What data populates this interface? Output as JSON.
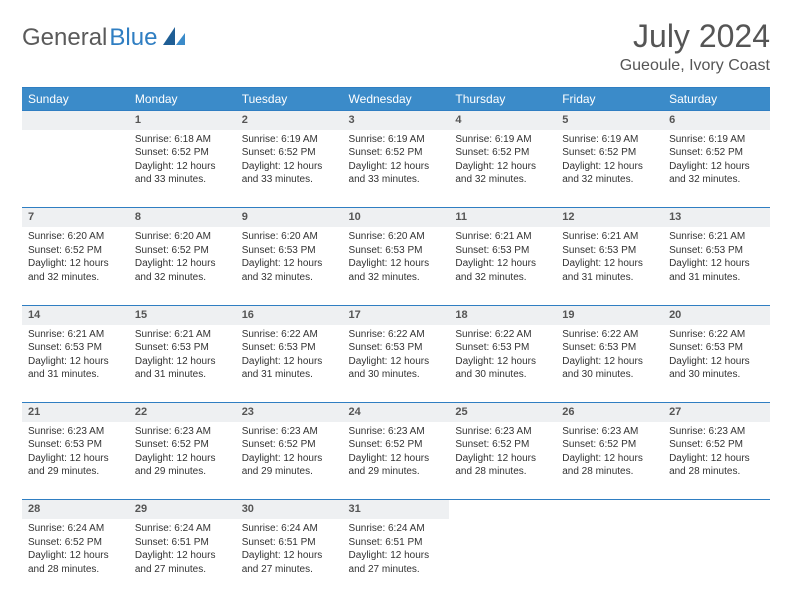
{
  "logo": {
    "part1": "General",
    "part2": "Blue"
  },
  "title": "July 2024",
  "location": "Gueoule, Ivory Coast",
  "weekdays": [
    "Sunday",
    "Monday",
    "Tuesday",
    "Wednesday",
    "Thursday",
    "Friday",
    "Saturday"
  ],
  "colors": {
    "header_bg": "#3b8bc9",
    "header_text": "#ffffff",
    "accent": "#2f7ec2",
    "daynum_bg": "#eef0f2",
    "text": "#333333",
    "title_text": "#555555"
  },
  "weeks": [
    [
      null,
      {
        "n": "1",
        "sr": "Sunrise: 6:18 AM",
        "ss": "Sunset: 6:52 PM",
        "d1": "Daylight: 12 hours",
        "d2": "and 33 minutes."
      },
      {
        "n": "2",
        "sr": "Sunrise: 6:19 AM",
        "ss": "Sunset: 6:52 PM",
        "d1": "Daylight: 12 hours",
        "d2": "and 33 minutes."
      },
      {
        "n": "3",
        "sr": "Sunrise: 6:19 AM",
        "ss": "Sunset: 6:52 PM",
        "d1": "Daylight: 12 hours",
        "d2": "and 33 minutes."
      },
      {
        "n": "4",
        "sr": "Sunrise: 6:19 AM",
        "ss": "Sunset: 6:52 PM",
        "d1": "Daylight: 12 hours",
        "d2": "and 32 minutes."
      },
      {
        "n": "5",
        "sr": "Sunrise: 6:19 AM",
        "ss": "Sunset: 6:52 PM",
        "d1": "Daylight: 12 hours",
        "d2": "and 32 minutes."
      },
      {
        "n": "6",
        "sr": "Sunrise: 6:19 AM",
        "ss": "Sunset: 6:52 PM",
        "d1": "Daylight: 12 hours",
        "d2": "and 32 minutes."
      }
    ],
    [
      {
        "n": "7",
        "sr": "Sunrise: 6:20 AM",
        "ss": "Sunset: 6:52 PM",
        "d1": "Daylight: 12 hours",
        "d2": "and 32 minutes."
      },
      {
        "n": "8",
        "sr": "Sunrise: 6:20 AM",
        "ss": "Sunset: 6:52 PM",
        "d1": "Daylight: 12 hours",
        "d2": "and 32 minutes."
      },
      {
        "n": "9",
        "sr": "Sunrise: 6:20 AM",
        "ss": "Sunset: 6:53 PM",
        "d1": "Daylight: 12 hours",
        "d2": "and 32 minutes."
      },
      {
        "n": "10",
        "sr": "Sunrise: 6:20 AM",
        "ss": "Sunset: 6:53 PM",
        "d1": "Daylight: 12 hours",
        "d2": "and 32 minutes."
      },
      {
        "n": "11",
        "sr": "Sunrise: 6:21 AM",
        "ss": "Sunset: 6:53 PM",
        "d1": "Daylight: 12 hours",
        "d2": "and 32 minutes."
      },
      {
        "n": "12",
        "sr": "Sunrise: 6:21 AM",
        "ss": "Sunset: 6:53 PM",
        "d1": "Daylight: 12 hours",
        "d2": "and 31 minutes."
      },
      {
        "n": "13",
        "sr": "Sunrise: 6:21 AM",
        "ss": "Sunset: 6:53 PM",
        "d1": "Daylight: 12 hours",
        "d2": "and 31 minutes."
      }
    ],
    [
      {
        "n": "14",
        "sr": "Sunrise: 6:21 AM",
        "ss": "Sunset: 6:53 PM",
        "d1": "Daylight: 12 hours",
        "d2": "and 31 minutes."
      },
      {
        "n": "15",
        "sr": "Sunrise: 6:21 AM",
        "ss": "Sunset: 6:53 PM",
        "d1": "Daylight: 12 hours",
        "d2": "and 31 minutes."
      },
      {
        "n": "16",
        "sr": "Sunrise: 6:22 AM",
        "ss": "Sunset: 6:53 PM",
        "d1": "Daylight: 12 hours",
        "d2": "and 31 minutes."
      },
      {
        "n": "17",
        "sr": "Sunrise: 6:22 AM",
        "ss": "Sunset: 6:53 PM",
        "d1": "Daylight: 12 hours",
        "d2": "and 30 minutes."
      },
      {
        "n": "18",
        "sr": "Sunrise: 6:22 AM",
        "ss": "Sunset: 6:53 PM",
        "d1": "Daylight: 12 hours",
        "d2": "and 30 minutes."
      },
      {
        "n": "19",
        "sr": "Sunrise: 6:22 AM",
        "ss": "Sunset: 6:53 PM",
        "d1": "Daylight: 12 hours",
        "d2": "and 30 minutes."
      },
      {
        "n": "20",
        "sr": "Sunrise: 6:22 AM",
        "ss": "Sunset: 6:53 PM",
        "d1": "Daylight: 12 hours",
        "d2": "and 30 minutes."
      }
    ],
    [
      {
        "n": "21",
        "sr": "Sunrise: 6:23 AM",
        "ss": "Sunset: 6:53 PM",
        "d1": "Daylight: 12 hours",
        "d2": "and 29 minutes."
      },
      {
        "n": "22",
        "sr": "Sunrise: 6:23 AM",
        "ss": "Sunset: 6:52 PM",
        "d1": "Daylight: 12 hours",
        "d2": "and 29 minutes."
      },
      {
        "n": "23",
        "sr": "Sunrise: 6:23 AM",
        "ss": "Sunset: 6:52 PM",
        "d1": "Daylight: 12 hours",
        "d2": "and 29 minutes."
      },
      {
        "n": "24",
        "sr": "Sunrise: 6:23 AM",
        "ss": "Sunset: 6:52 PM",
        "d1": "Daylight: 12 hours",
        "d2": "and 29 minutes."
      },
      {
        "n": "25",
        "sr": "Sunrise: 6:23 AM",
        "ss": "Sunset: 6:52 PM",
        "d1": "Daylight: 12 hours",
        "d2": "and 28 minutes."
      },
      {
        "n": "26",
        "sr": "Sunrise: 6:23 AM",
        "ss": "Sunset: 6:52 PM",
        "d1": "Daylight: 12 hours",
        "d2": "and 28 minutes."
      },
      {
        "n": "27",
        "sr": "Sunrise: 6:23 AM",
        "ss": "Sunset: 6:52 PM",
        "d1": "Daylight: 12 hours",
        "d2": "and 28 minutes."
      }
    ],
    [
      {
        "n": "28",
        "sr": "Sunrise: 6:24 AM",
        "ss": "Sunset: 6:52 PM",
        "d1": "Daylight: 12 hours",
        "d2": "and 28 minutes."
      },
      {
        "n": "29",
        "sr": "Sunrise: 6:24 AM",
        "ss": "Sunset: 6:51 PM",
        "d1": "Daylight: 12 hours",
        "d2": "and 27 minutes."
      },
      {
        "n": "30",
        "sr": "Sunrise: 6:24 AM",
        "ss": "Sunset: 6:51 PM",
        "d1": "Daylight: 12 hours",
        "d2": "and 27 minutes."
      },
      {
        "n": "31",
        "sr": "Sunrise: 6:24 AM",
        "ss": "Sunset: 6:51 PM",
        "d1": "Daylight: 12 hours",
        "d2": "and 27 minutes."
      },
      null,
      null,
      null
    ]
  ]
}
